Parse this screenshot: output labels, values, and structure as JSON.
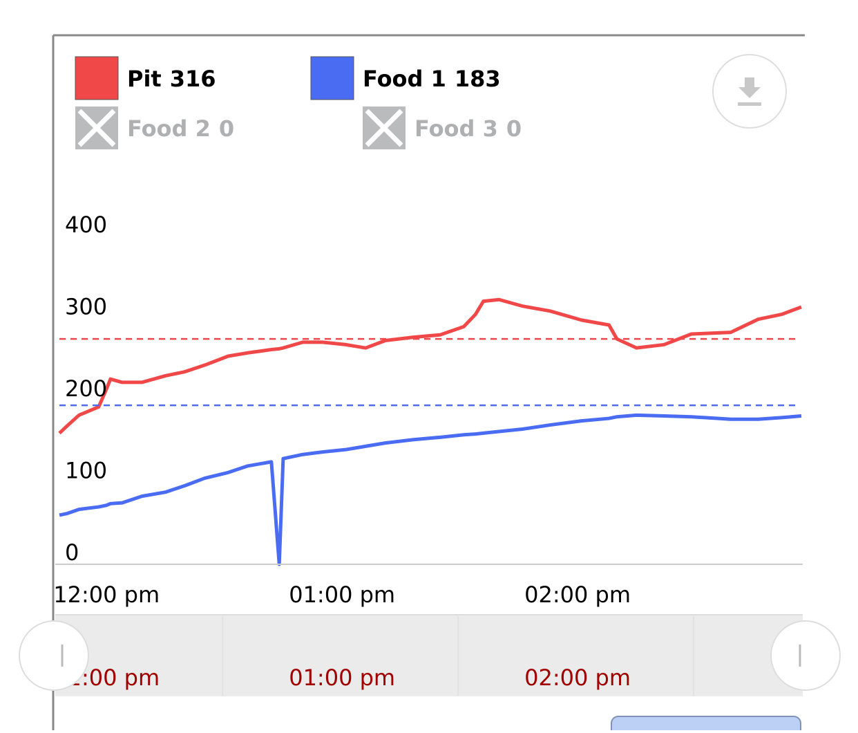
{
  "chart_data": {
    "type": "line",
    "series": [
      {
        "name": "Pit",
        "color": "#f04848",
        "current": 316,
        "enabled": true,
        "target": 275,
        "values": [
          160,
          169,
          182,
          192,
          214,
          226,
          222,
          222,
          230,
          235,
          243,
          254,
          258,
          262,
          263,
          264,
          271,
          271,
          268,
          264,
          273,
          277,
          280,
          290,
          305,
          321,
          323,
          315,
          309,
          298,
          292,
          275,
          264,
          268,
          281,
          283,
          299,
          305,
          314
        ]
      },
      {
        "name": "Food 1",
        "color": "#4a6cf2",
        "current": 183,
        "enabled": true,
        "target": 194,
        "values": [
          60,
          62,
          67,
          70,
          72,
          74,
          75,
          83,
          88,
          96,
          105,
          112,
          120,
          125,
          0,
          129,
          134,
          137,
          140,
          144,
          148,
          152,
          155,
          158,
          159,
          160,
          162,
          165,
          170,
          175,
          178,
          180,
          182,
          181,
          180,
          177,
          177,
          179,
          181
        ]
      },
      {
        "name": "Food 2",
        "current": 0,
        "enabled": false
      },
      {
        "name": "Food 3",
        "current": 0,
        "enabled": false
      }
    ],
    "x": [
      "11:48 am",
      "11:50 am",
      "11:53 am",
      "11:58 am",
      "12:00 pm",
      "12:01 pm",
      "12:04 pm",
      "12:09 pm",
      "12:15 pm",
      "12:20 pm",
      "12:25 pm",
      "12:31 pm",
      "12:36 pm",
      "12:42 pm",
      "12:44 pm",
      "12:45 pm",
      "12:50 pm",
      "12:55 pm",
      "01:01 pm",
      "01:06 pm",
      "01:11 pm",
      "01:18 pm",
      "01:25 pm",
      "01:31 pm",
      "01:34 pm",
      "01:36 pm",
      "01:40 pm",
      "01:46 pm",
      "01:53 pm",
      "02:01 pm",
      "02:08 pm",
      "02:10 pm",
      "02:15 pm",
      "02:22 pm",
      "02:29 pm",
      "02:39 pm",
      "02:46 pm",
      "02:52 pm",
      "02:57 pm"
    ],
    "xlim": [
      "11:48 am",
      "02:57 pm"
    ],
    "xticks": [
      "12:00 pm",
      "01:00 pm",
      "02:00 pm"
    ],
    "ylim": [
      0,
      400
    ],
    "yticks": [
      0,
      100,
      200,
      300,
      400
    ]
  }
}
